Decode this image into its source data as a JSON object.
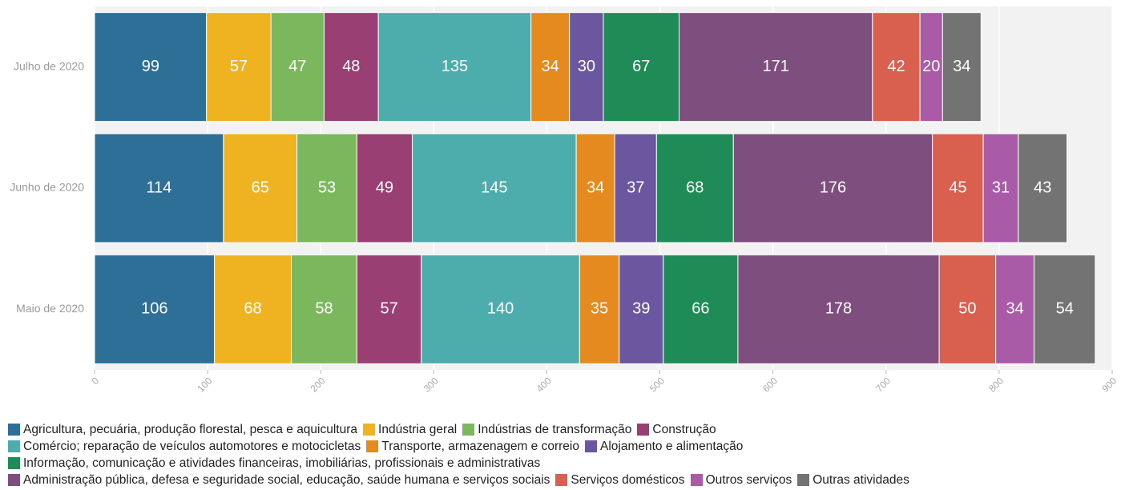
{
  "chart_data": {
    "type": "stacked-bar-horizontal",
    "categories": [
      "Julho de 2020",
      "Junho de 2020",
      "Maio de 2020"
    ],
    "series": [
      {
        "name": "Agricultura, pecuária, produção florestal, pesca e aquicultura",
        "color": "#2d6f96",
        "values": [
          99,
          114,
          106
        ]
      },
      {
        "name": "Indústria geral",
        "color": "#efb322",
        "values": [
          57,
          65,
          68
        ]
      },
      {
        "name": "Indústrias de transformação",
        "color": "#7bb75c",
        "values": [
          47,
          53,
          58
        ]
      },
      {
        "name": "Construção",
        "color": "#9a3f74",
        "values": [
          48,
          49,
          57
        ]
      },
      {
        "name": "Comércio; reparação de veículos automotores e motocicletas",
        "color": "#4dadad",
        "values": [
          135,
          145,
          140
        ]
      },
      {
        "name": "Transporte, armazenagem e correio",
        "color": "#e48a1e",
        "values": [
          34,
          34,
          35
        ]
      },
      {
        "name": "Alojamento e alimentação",
        "color": "#6b579f",
        "values": [
          30,
          37,
          39
        ]
      },
      {
        "name": "Informação, comunicação e atividades financeiras, imobiliárias, profissionais e administrativas",
        "color": "#1f8b56",
        "values": [
          67,
          68,
          66
        ]
      },
      {
        "name": "Administração pública, defesa e seguridade social, educação, saúde humana e serviços sociais",
        "color": "#7e4f7e",
        "values": [
          171,
          176,
          178
        ]
      },
      {
        "name": "Serviços domésticos",
        "color": "#d95f4f",
        "values": [
          42,
          45,
          50
        ]
      },
      {
        "name": "Outros serviços",
        "color": "#a95ba8",
        "values": [
          20,
          31,
          34
        ]
      },
      {
        "name": "Outras atividades",
        "color": "#737373",
        "values": [
          34,
          43,
          54
        ]
      }
    ],
    "xlim": [
      0,
      900
    ],
    "xticks": [
      0,
      100,
      200,
      300,
      400,
      500,
      600,
      700,
      800,
      900
    ],
    "grid": true
  }
}
